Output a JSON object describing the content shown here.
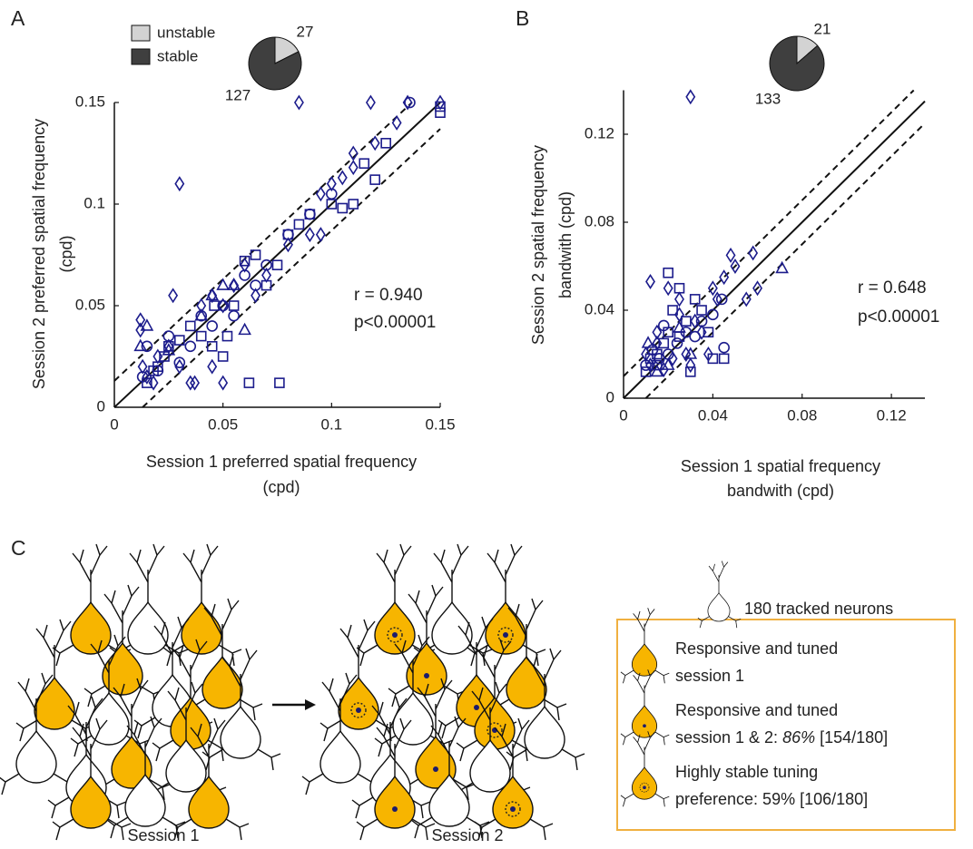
{
  "panel_labels": [
    "A",
    "B",
    "C"
  ],
  "chart_data": [
    {
      "type": "scatter",
      "x_label": [
        "Session 1 preferred spatial frequency",
        "(cpd)"
      ],
      "y_label": [
        "Session 2 preferred spatial frequency",
        "(cpd)"
      ],
      "xlim": [
        0,
        0.15
      ],
      "ylim": [
        0,
        0.15
      ],
      "xticks": [
        0,
        0.05,
        0.1,
        0.15
      ],
      "yticks": [
        0,
        0.05,
        0.1,
        0.15
      ],
      "color": "#1c1c8c",
      "annotations": [
        "r = 0.940",
        "p<0.00001"
      ],
      "reference_lines": [
        {
          "slope": 1,
          "intercept": 0,
          "style": "solid"
        },
        {
          "slope": 1,
          "intercept": 0.013,
          "style": "dashed"
        },
        {
          "slope": 1,
          "intercept": -0.013,
          "style": "dashed"
        }
      ],
      "series": [
        {
          "marker": "diamond",
          "x": [
            0.012,
            0.012,
            0.013,
            0.015,
            0.018,
            0.02,
            0.025,
            0.027,
            0.03,
            0.035,
            0.037,
            0.04,
            0.045,
            0.05,
            0.055,
            0.06,
            0.07,
            0.08,
            0.09,
            0.095,
            0.1,
            0.105,
            0.11,
            0.12,
            0.13,
            0.085,
            0.118,
            0.135,
            0.15,
            0.05,
            0.045,
            0.095,
            0.11,
            0.03,
            0.065
          ],
          "values": [
            0.043,
            0.038,
            0.02,
            0.015,
            0.012,
            0.025,
            0.03,
            0.055,
            0.11,
            0.012,
            0.012,
            0.05,
            0.055,
            0.05,
            0.06,
            0.07,
            0.065,
            0.08,
            0.085,
            0.105,
            0.11,
            0.113,
            0.125,
            0.13,
            0.14,
            0.15,
            0.15,
            0.15,
            0.15,
            0.012,
            0.02,
            0.085,
            0.118,
            0.02,
            0.055
          ]
        },
        {
          "marker": "square",
          "x": [
            0.015,
            0.018,
            0.02,
            0.023,
            0.025,
            0.03,
            0.035,
            0.04,
            0.045,
            0.05,
            0.055,
            0.06,
            0.062,
            0.065,
            0.07,
            0.075,
            0.076,
            0.08,
            0.085,
            0.09,
            0.1,
            0.105,
            0.11,
            0.115,
            0.12,
            0.125,
            0.15,
            0.15,
            0.046,
            0.052
          ],
          "values": [
            0.012,
            0.018,
            0.02,
            0.025,
            0.03,
            0.033,
            0.04,
            0.035,
            0.03,
            0.025,
            0.05,
            0.072,
            0.012,
            0.075,
            0.06,
            0.07,
            0.012,
            0.085,
            0.09,
            0.095,
            0.1,
            0.098,
            0.1,
            0.12,
            0.112,
            0.13,
            0.145,
            0.148,
            0.05,
            0.035
          ]
        },
        {
          "marker": "circle",
          "x": [
            0.013,
            0.015,
            0.02,
            0.025,
            0.03,
            0.035,
            0.04,
            0.045,
            0.05,
            0.055,
            0.06,
            0.07,
            0.08,
            0.09,
            0.1,
            0.136,
            0.065
          ],
          "values": [
            0.015,
            0.03,
            0.018,
            0.035,
            0.022,
            0.03,
            0.045,
            0.04,
            0.05,
            0.045,
            0.065,
            0.07,
            0.085,
            0.095,
            0.105,
            0.15,
            0.06
          ]
        },
        {
          "marker": "triangle",
          "x": [
            0.012,
            0.015,
            0.025,
            0.04,
            0.05,
            0.055,
            0.06,
            0.045
          ],
          "values": [
            0.03,
            0.04,
            0.028,
            0.045,
            0.06,
            0.06,
            0.038,
            0.055
          ]
        }
      ]
    },
    {
      "type": "pie",
      "categories": [
        "unstable",
        "stable"
      ],
      "values": [
        27,
        127
      ],
      "colors": [
        "#d3d3d3",
        "#3f3f3f"
      ],
      "legend": true
    },
    {
      "type": "scatter",
      "x_label": [
        "Session 1 spatial frequency",
        "bandwith (cpd)"
      ],
      "y_label": [
        "Session 2 spatial frequency",
        "bandwith (cpd)"
      ],
      "xlim": [
        0,
        0.135
      ],
      "ylim": [
        0,
        0.14
      ],
      "xticks": [
        0,
        0.04,
        0.08,
        0.12
      ],
      "yticks": [
        0,
        0.04,
        0.08,
        0.12
      ],
      "color": "#1c1c8c",
      "annotations": [
        "r = 0.648",
        "p<0.00001"
      ],
      "reference_lines": [
        {
          "slope": 1,
          "intercept": 0,
          "style": "solid"
        },
        {
          "slope": 1,
          "intercept": 0.01,
          "style": "dashed"
        },
        {
          "slope": 1,
          "intercept": -0.01,
          "style": "dashed"
        }
      ],
      "series": [
        {
          "marker": "diamond",
          "x": [
            0.01,
            0.012,
            0.015,
            0.018,
            0.02,
            0.022,
            0.025,
            0.028,
            0.03,
            0.032,
            0.035,
            0.038,
            0.04,
            0.042,
            0.045,
            0.048,
            0.05,
            0.055,
            0.058,
            0.06,
            0.012,
            0.03,
            0.025,
            0.015
          ],
          "values": [
            0.02,
            0.015,
            0.025,
            0.013,
            0.05,
            0.018,
            0.045,
            0.02,
            0.137,
            0.035,
            0.03,
            0.02,
            0.05,
            0.045,
            0.055,
            0.065,
            0.06,
            0.045,
            0.066,
            0.05,
            0.053,
            0.015,
            0.038,
            0.03
          ]
        },
        {
          "marker": "square",
          "x": [
            0.01,
            0.012,
            0.015,
            0.018,
            0.02,
            0.022,
            0.025,
            0.028,
            0.03,
            0.032,
            0.035,
            0.04,
            0.045,
            0.02,
            0.025,
            0.015,
            0.038
          ],
          "values": [
            0.012,
            0.018,
            0.02,
            0.025,
            0.03,
            0.04,
            0.028,
            0.035,
            0.012,
            0.045,
            0.04,
            0.018,
            0.018,
            0.057,
            0.05,
            0.015,
            0.03
          ]
        },
        {
          "marker": "circle",
          "x": [
            0.01,
            0.013,
            0.016,
            0.02,
            0.024,
            0.028,
            0.032,
            0.035,
            0.04,
            0.044,
            0.045,
            0.018
          ],
          "values": [
            0.015,
            0.022,
            0.018,
            0.02,
            0.025,
            0.03,
            0.028,
            0.035,
            0.038,
            0.045,
            0.023,
            0.033
          ]
        },
        {
          "marker": "triangle",
          "x": [
            0.011,
            0.015,
            0.02,
            0.03,
            0.071,
            0.025
          ],
          "values": [
            0.025,
            0.012,
            0.015,
            0.02,
            0.059,
            0.032
          ]
        }
      ]
    },
    {
      "type": "pie",
      "categories": [
        "unstable",
        "stable"
      ],
      "values": [
        21,
        133
      ],
      "colors": [
        "#d3d3d3",
        "#3f3f3f"
      ],
      "legend": false
    }
  ],
  "diagram": {
    "session_labels": [
      "Session 1",
      "Session 2"
    ],
    "tracked_label": "180 tracked neurons",
    "legend": [
      {
        "lines": [
          [
            "Responsive and tuned"
          ],
          [
            "session 1"
          ]
        ]
      },
      {
        "lines": [
          [
            "Responsive and tuned"
          ],
          [
            "session 1 & 2: ",
            "86%",
            " [154/180]"
          ]
        ]
      },
      {
        "lines": [
          [
            "Highly stable tuning"
          ],
          [
            "preference: 59% [106/180]"
          ]
        ]
      }
    ]
  }
}
